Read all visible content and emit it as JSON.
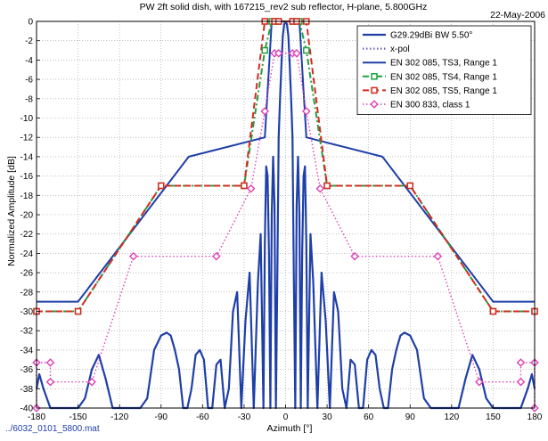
{
  "chart_data": {
    "type": "line",
    "title": "PW 2ft solid dish, with 167215_rev2 sub reflector, H-plane,  5.800GHz",
    "date": "22-May-2006",
    "xlabel": "Azimuth [°]",
    "ylabel": "Normalized Amplitude [dB]",
    "footer": "../6032_0101_5800.mat",
    "xlim": [
      -180,
      180
    ],
    "ylim": [
      -40,
      0
    ],
    "xticks": [
      -180,
      -150,
      -120,
      -90,
      -60,
      -30,
      0,
      30,
      60,
      90,
      120,
      150,
      180
    ],
    "yticks": [
      0,
      -2,
      -4,
      -6,
      -8,
      -10,
      -12,
      -14,
      -16,
      -18,
      -20,
      -22,
      -24,
      -26,
      -28,
      -30,
      -32,
      -34,
      -36,
      -38,
      -40
    ],
    "grid": true,
    "legend_position": "top-right",
    "series": [
      {
        "name": "G29.29dBi BW 5.50°",
        "color": "#1f3fa8",
        "style": "solid",
        "kind": "pattern",
        "x": [
          -180,
          -178,
          -175,
          -170,
          -165,
          -160,
          -155,
          -150,
          -145,
          -140,
          -135,
          -130,
          -125,
          -120,
          -115,
          -110,
          -105,
          -100,
          -95,
          -90,
          -86,
          -83,
          -80,
          -77,
          -74,
          -71,
          -68,
          -65,
          -62,
          -59,
          -56,
          -53,
          -50,
          -47,
          -44,
          -41,
          -38,
          -35,
          -32,
          -29,
          -26,
          -23,
          -20,
          -18,
          -16,
          -15,
          -14,
          -13,
          -12,
          -11,
          -10,
          -9,
          -8,
          -7,
          -6,
          -5,
          -4,
          -3,
          -2,
          -1,
          0,
          1,
          2,
          3,
          4,
          5,
          6,
          7,
          8,
          9,
          10,
          11,
          12,
          13,
          14,
          15,
          16,
          18,
          20,
          23,
          26,
          29,
          32,
          35,
          38,
          41,
          44,
          47,
          50,
          53,
          56,
          59,
          62,
          65,
          68,
          71,
          74,
          77,
          80,
          83,
          86,
          90,
          95,
          100,
          105,
          110,
          115,
          120,
          125,
          130,
          135,
          140,
          145,
          150,
          155,
          160,
          165,
          170,
          175,
          178,
          180
        ],
        "y": [
          -38,
          -36.5,
          -38,
          -40,
          -40,
          -40,
          -40,
          -40,
          -39,
          -36,
          -34.5,
          -37,
          -40,
          -40,
          -40,
          -40,
          -40,
          -39,
          -34,
          -32.5,
          -32.2,
          -32.5,
          -34,
          -36,
          -40,
          -40,
          -38,
          -34.5,
          -34,
          -35,
          -40,
          -40,
          -35.5,
          -35,
          -40,
          -38,
          -30,
          -28,
          -40,
          -31,
          -26,
          -40,
          -27,
          -22,
          -40,
          -23,
          -15,
          -16,
          -24,
          -40,
          -20,
          -14,
          -19,
          -40,
          -27,
          -12,
          -8,
          -4.5,
          -1.5,
          -0.3,
          0,
          -0.3,
          -1.5,
          -4.5,
          -8,
          -12,
          -27,
          -40,
          -19,
          -14,
          -20,
          -40,
          -24,
          -16,
          -15,
          -23,
          -40,
          -22,
          -27,
          -40,
          -26,
          -31,
          -40,
          -28,
          -30,
          -38,
          -40,
          -35,
          -35.5,
          -40,
          -40,
          -35,
          -34,
          -34.5,
          -38,
          -40,
          -40,
          -36,
          -34,
          -32.5,
          -32.2,
          -32.5,
          -34,
          -39,
          -40,
          -40,
          -40,
          -40,
          -40,
          -37,
          -34.5,
          -36,
          -39,
          -40,
          -40,
          -40,
          -40,
          -40,
          -38,
          -36.5,
          -38
        ]
      },
      {
        "name": "x-pol",
        "color": "#6f63c8",
        "style": "dotted",
        "kind": "pattern",
        "x": [],
        "y": []
      },
      {
        "name": "EN 302 085, TS3, Range 1",
        "color": "#1f3fa8",
        "style": "solid",
        "kind": "mask",
        "x": [
          -180,
          -150,
          -70,
          -15,
          -10,
          -5,
          5,
          10,
          15,
          70,
          150,
          180
        ],
        "y": [
          -29,
          -29,
          -14,
          -12,
          0,
          0,
          0,
          0,
          -12,
          -14,
          -29,
          -29
        ]
      },
      {
        "name": "EN 302 085, TS4, Range 1",
        "color": "#20a040",
        "style": "dashdot",
        "marker": "square",
        "kind": "mask",
        "x": [
          -180,
          -150,
          -90,
          -30,
          -15,
          -10,
          -5,
          5,
          10,
          15,
          30,
          90,
          150,
          180
        ],
        "y": [
          -30,
          -30,
          -17,
          -17,
          -3,
          0,
          0,
          0,
          0,
          -3,
          -17,
          -17,
          -30,
          -30
        ]
      },
      {
        "name": "EN 302 085, TS5, Range 1",
        "color": "#d62a1e",
        "style": "dashed",
        "marker": "square",
        "kind": "mask",
        "x": [
          -180,
          -150,
          -90,
          -30,
          -15,
          -8,
          -5,
          5,
          8,
          15,
          30,
          90,
          150,
          180
        ],
        "y": [
          -30,
          -30,
          -17,
          -17,
          0,
          0,
          0,
          0,
          0,
          0,
          -17,
          -17,
          -30,
          -30
        ]
      },
      {
        "name": "EN 300 833, class 1",
        "color": "#e040b8",
        "style": "dotted",
        "marker": "diamond",
        "kind": "mask",
        "x": [
          -180,
          -180,
          -170,
          -170,
          -140,
          -110,
          -50,
          -25,
          -15,
          -8,
          -5,
          5,
          8,
          15,
          25,
          50,
          110,
          140,
          170,
          170,
          180,
          180
        ],
        "y": [
          -40,
          -35.3,
          -35.3,
          -37.3,
          -37.3,
          -24.3,
          -24.3,
          -17.3,
          -9.3,
          -3.3,
          -3.3,
          -3.3,
          -3.3,
          -9.3,
          -17.3,
          -24.3,
          -24.3,
          -37.3,
          -37.3,
          -35.3,
          -35.3,
          -40
        ]
      }
    ]
  }
}
